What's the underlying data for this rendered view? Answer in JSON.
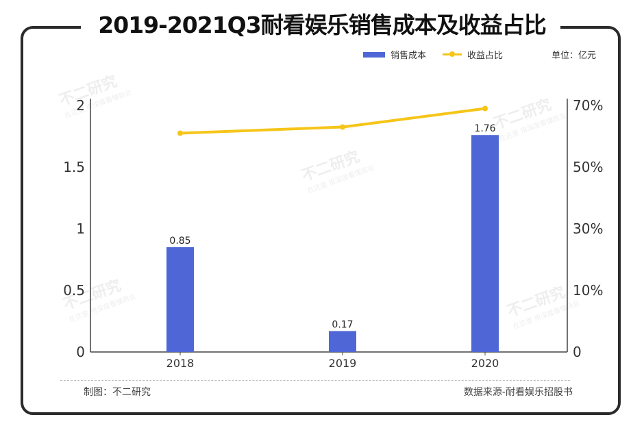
{
  "title": "2019-2021Q3耐看娱乐销售成本及收益占比",
  "legend": {
    "bar_label": "销售成本",
    "line_label": "收益占比",
    "unit": "单位：亿元"
  },
  "footer": {
    "credit": "制图：不二研究",
    "source": "数据来源-耐看娱乐招股书"
  },
  "watermark": {
    "main": "不二研究",
    "sub": "在这里 用深度看懂商业"
  },
  "chart_data": {
    "type": "bar",
    "categories": [
      "2018",
      "2019",
      "2020"
    ],
    "series": [
      {
        "name": "销售成本",
        "type": "bar",
        "axis": "left",
        "values": [
          0.85,
          0.17,
          1.76
        ],
        "color": "#4f67d6"
      },
      {
        "name": "收益占比",
        "type": "line",
        "axis": "right",
        "values": [
          61,
          63,
          69
        ],
        "color": "#f5c518"
      }
    ],
    "data_labels": [
      "0.85",
      "0.17",
      "1.76"
    ],
    "y_left": {
      "ticks": [
        "0",
        "0.5",
        "1",
        "1.5",
        "2"
      ],
      "min": 0,
      "max": 2
    },
    "y_right": {
      "ticks": [
        "0",
        "10%",
        "30%",
        "50%",
        "70%"
      ],
      "min": 0,
      "max": 70
    },
    "grid": false
  }
}
